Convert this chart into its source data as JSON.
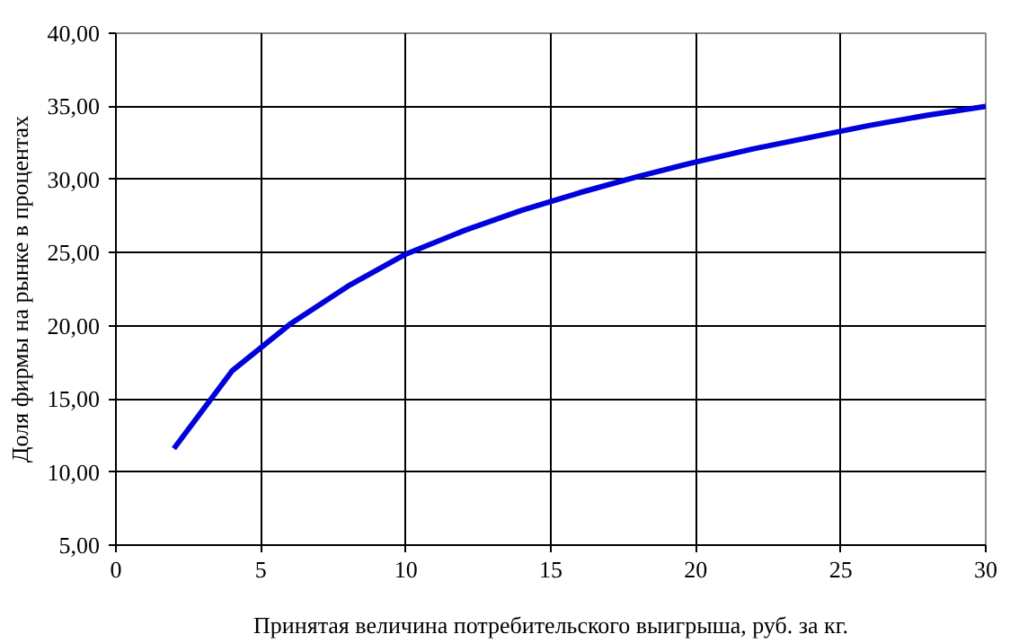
{
  "chart_data": {
    "type": "line",
    "xlabel": "Принятая величина потребительского выигрыша, руб. за кг.",
    "ylabel": "Доля фирмы на рынке в процентах",
    "x": [
      2,
      4,
      6,
      8,
      10,
      12,
      14,
      16,
      18,
      20,
      22,
      24,
      26,
      28,
      30
    ],
    "series": [
      {
        "color": "#0000dd",
        "values": [
          11.6,
          16.9,
          20.1,
          22.7,
          24.9,
          26.5,
          27.9,
          29.1,
          30.2,
          31.2,
          32.1,
          32.9,
          33.7,
          34.4,
          35.0
        ]
      }
    ],
    "xlim": [
      0,
      30
    ],
    "xticks": [
      0,
      5,
      10,
      15,
      20,
      25,
      30
    ],
    "ylim": [
      5,
      40
    ],
    "yticks": [
      {
        "value": 5,
        "label": "5,00"
      },
      {
        "value": 10,
        "label": "10,00"
      },
      {
        "value": 15,
        "label": "15,00"
      },
      {
        "value": 20,
        "label": "20,00"
      },
      {
        "value": 25,
        "label": "25,00"
      },
      {
        "value": 30,
        "label": "30,00"
      },
      {
        "value": 35,
        "label": "35,00"
      },
      {
        "value": 40,
        "label": "40,00"
      }
    ],
    "grid": true,
    "marker": "none",
    "line_style": "solid"
  }
}
